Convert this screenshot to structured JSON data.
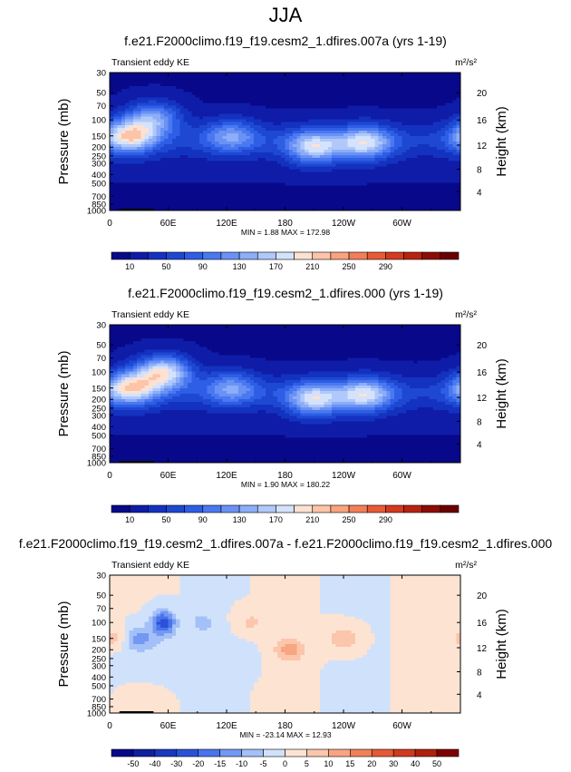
{
  "figure": {
    "title": "JJA",
    "colors": {
      "ke_levels": [
        "#08088a",
        "#0f1ca8",
        "#1432c0",
        "#1e48d2",
        "#2e5ee6",
        "#4a78f0",
        "#6a92f5",
        "#8cadf8",
        "#b0c8fa",
        "#d4e2fc",
        "#fde2d2",
        "#fcc4a8",
        "#f9a27e",
        "#f37e58",
        "#e85a36",
        "#d43a1e",
        "#b82210",
        "#8e0c06",
        "#6a0000"
      ],
      "diff_levels": [
        "#08088a",
        "#10209e",
        "#1838c0",
        "#2a52d8",
        "#4a74ec",
        "#7398f2",
        "#a4c0f8",
        "#d0e2fb",
        "#fde3d2",
        "#fbc6ab",
        "#f8a582",
        "#f1805a",
        "#e45a36",
        "#cf3a1e",
        "#b0200e",
        "#7e0000"
      ]
    }
  },
  "chart_data": [
    {
      "type": "heatmap",
      "title": "f.e21.F2000climo.f19_f19.cesm2_1.dfires.007a (yrs 1-19)",
      "subtitle_left": "Transient eddy KE",
      "units": "m²/s²",
      "ylabel": "Pressure (mb)",
      "ylabel_right": "Height (km)",
      "x_ticks": [
        "0",
        "60E",
        "120E",
        "180",
        "120W",
        "60W"
      ],
      "y_ticks": [
        "30",
        "50",
        "70",
        "100",
        "150",
        "200",
        "250",
        "300",
        "400",
        "500",
        "700",
        "850",
        "1000"
      ],
      "y_ticks_right": [
        "20",
        "16",
        "12",
        "8",
        "4"
      ],
      "stats": "MIN =   1.88  MAX = 172.98",
      "min": 1.88,
      "max": 172.98,
      "colorbar_labels": [
        "10",
        "50",
        "90",
        "130",
        "170",
        "210",
        "250",
        "290"
      ],
      "jets": [
        {
          "lon": 20,
          "p": 150,
          "peak": 172.98
        },
        {
          "lon": 45,
          "p": 95,
          "peak": 120
        },
        {
          "lon": 125,
          "p": 150,
          "peak": 100
        },
        {
          "lon": 210,
          "p": 200,
          "peak": 150
        },
        {
          "lon": 262,
          "p": 180,
          "peak": 150
        }
      ]
    },
    {
      "type": "heatmap",
      "title": "f.e21.F2000climo.f19_f19.cesm2_1.dfires.000 (yrs 1-19)",
      "subtitle_left": "Transient eddy KE",
      "units": "m²/s²",
      "ylabel": "Pressure (mb)",
      "ylabel_right": "Height (km)",
      "x_ticks": [
        "0",
        "60E",
        "120E",
        "180",
        "120W",
        "60W"
      ],
      "y_ticks": [
        "30",
        "50",
        "70",
        "100",
        "150",
        "200",
        "250",
        "300",
        "400",
        "500",
        "700",
        "850",
        "1000"
      ],
      "y_ticks_right": [
        "20",
        "16",
        "12",
        "8",
        "4"
      ],
      "stats": "MIN =   1.90  MAX = 180.22",
      "min": 1.9,
      "max": 180.22,
      "colorbar_labels": [
        "10",
        "50",
        "90",
        "130",
        "170",
        "210",
        "250",
        "290"
      ],
      "jets": [
        {
          "lon": 20,
          "p": 150,
          "peak": 170
        },
        {
          "lon": 55,
          "p": 100,
          "peak": 180.22
        },
        {
          "lon": 125,
          "p": 150,
          "peak": 100
        },
        {
          "lon": 210,
          "p": 200,
          "peak": 150
        },
        {
          "lon": 262,
          "p": 180,
          "peak": 150
        }
      ]
    },
    {
      "type": "heatmap",
      "title": "f.e21.F2000climo.f19_f19.cesm2_1.dfires.007a - f.e21.F2000climo.f19_f19.cesm2_1.dfires.000",
      "subtitle_left": "Transient eddy KE",
      "units": "m²/s²",
      "ylabel": "Pressure (mb)",
      "ylabel_right": "Height (km)",
      "x_ticks": [
        "0",
        "60E",
        "120E",
        "180",
        "120W",
        "60W"
      ],
      "y_ticks": [
        "30",
        "50",
        "70",
        "100",
        "150",
        "200",
        "250",
        "300",
        "400",
        "500",
        "700",
        "850",
        "1000"
      ],
      "y_ticks_right": [
        "20",
        "16",
        "12",
        "8",
        "4"
      ],
      "stats": "MIN = -23.14  MAX =  12.93",
      "min": -23.14,
      "max": 12.93,
      "colorbar_labels": [
        "-50",
        "-40",
        "-30",
        "-20",
        "-15",
        "-10",
        "-5",
        "0",
        "5",
        "10",
        "15",
        "20",
        "30",
        "40",
        "50"
      ],
      "anomalies": [
        {
          "lon": 55,
          "p": 100,
          "value": -23.14
        },
        {
          "lon": 30,
          "p": 150,
          "value": -12
        },
        {
          "lon": 5,
          "p": 150,
          "value": 8
        },
        {
          "lon": 95,
          "p": 100,
          "value": -6
        },
        {
          "lon": 185,
          "p": 200,
          "value": 12.93
        },
        {
          "lon": 240,
          "p": 150,
          "value": 10
        },
        {
          "lon": 145,
          "p": 100,
          "value": 6
        }
      ]
    }
  ]
}
